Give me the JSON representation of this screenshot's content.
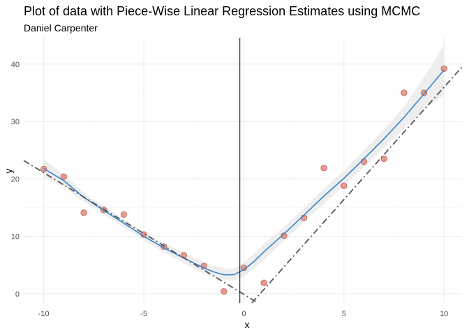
{
  "chart_data": {
    "type": "scatter",
    "title": "Plot of data with Piece-Wise Linear Regression Estimates using MCMC",
    "subtitle": "Daniel Carpenter",
    "xlabel": "x",
    "ylabel": "y",
    "xlim": [
      -11,
      10.9
    ],
    "ylim": [
      -1.6,
      44.6
    ],
    "x_ticks": [
      -10,
      -5,
      0,
      5,
      10
    ],
    "y_ticks": [
      0,
      10,
      20,
      30,
      40
    ],
    "x_tick_labels": [
      "-10",
      "-5",
      "0",
      "5",
      "10"
    ],
    "y_tick_labels": [
      "0",
      "10",
      "20",
      "30",
      "40"
    ],
    "grid": true,
    "legend": "none",
    "colors": {
      "points_fill": "#e8887a",
      "points_stroke": "#b85c50",
      "smooth_line": "#3a86c8",
      "ribbon": "#ebebeb",
      "dash_lines": "#555555",
      "vline": "#000000",
      "grid_major": "#ebebeb",
      "grid_minor": "#f5f5f5"
    },
    "points": [
      {
        "x": -10,
        "y": 21.7
      },
      {
        "x": -9,
        "y": 20.4
      },
      {
        "x": -8,
        "y": 14.1
      },
      {
        "x": -7,
        "y": 14.6
      },
      {
        "x": -6,
        "y": 13.8
      },
      {
        "x": -5,
        "y": 10.3
      },
      {
        "x": -4,
        "y": 8.2
      },
      {
        "x": -3,
        "y": 6.7
      },
      {
        "x": -2,
        "y": 4.8
      },
      {
        "x": -1,
        "y": 0.4
      },
      {
        "x": 0,
        "y": 4.5
      },
      {
        "x": 1,
        "y": 1.9
      },
      {
        "x": 2,
        "y": 10.1
      },
      {
        "x": 3,
        "y": 13.2
      },
      {
        "x": 4,
        "y": 21.9
      },
      {
        "x": 5,
        "y": 18.8
      },
      {
        "x": 6,
        "y": 23.0
      },
      {
        "x": 7,
        "y": 23.5
      },
      {
        "x": 8,
        "y": 35.0
      },
      {
        "x": 9,
        "y": 35.0
      },
      {
        "x": 10,
        "y": 39.2
      }
    ],
    "smooth": {
      "x": [
        -10,
        -9,
        -8,
        -7,
        -6,
        -5,
        -4,
        -3,
        -2,
        -1.5,
        -1,
        -0.5,
        0,
        0.5,
        1,
        2,
        3,
        4,
        5,
        6,
        7,
        8,
        9,
        10
      ],
      "y": [
        21.8,
        19.7,
        16.8,
        14.5,
        12.3,
        10.0,
        8.0,
        6.2,
        4.5,
        3.8,
        3.3,
        3.3,
        4.2,
        5.6,
        7.3,
        10.4,
        13.7,
        17.0,
        20.1,
        23.5,
        27.0,
        30.7,
        34.8,
        39.0
      ],
      "lower": [
        20.3,
        18.6,
        16.0,
        13.8,
        11.6,
        9.3,
        7.2,
        5.3,
        3.5,
        2.8,
        2.3,
        2.3,
        3.0,
        4.3,
        5.9,
        9.2,
        12.5,
        15.7,
        18.8,
        22.1,
        25.4,
        28.8,
        32.0,
        34.6
      ],
      "upper": [
        23.4,
        20.8,
        17.6,
        15.2,
        13.0,
        10.7,
        8.8,
        7.1,
        5.6,
        4.9,
        4.4,
        4.4,
        5.4,
        6.9,
        8.7,
        11.6,
        14.9,
        18.3,
        21.4,
        24.9,
        28.6,
        32.6,
        37.7,
        43.4
      ]
    },
    "regression_lines": [
      {
        "x": [
          -11,
          0.7
        ],
        "y": [
          23.2,
          -1.6
        ]
      },
      {
        "x": [
          0.4,
          10.9
        ],
        "y": [
          -1.6,
          39.5
        ]
      }
    ],
    "vline_x": -0.2
  }
}
